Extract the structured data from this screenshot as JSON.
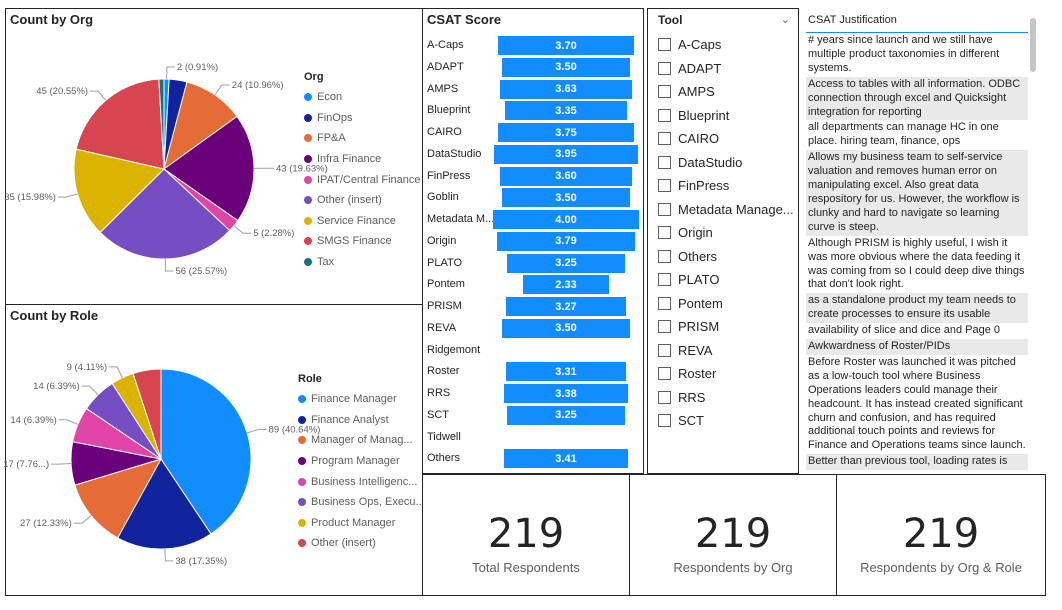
{
  "count_by_org": {
    "title": "Count by Org",
    "legend_title": "Org",
    "slices": [
      {
        "name": "Econ",
        "value": 2,
        "label": "2 (0.91%)",
        "color": "#118dff"
      },
      {
        "name": "FinOps",
        "value": 7,
        "label": "",
        "color": "#12239e"
      },
      {
        "name": "FP&A",
        "value": 24,
        "label": "24 (10.96%)",
        "color": "#e66c37"
      },
      {
        "name": "Infra Finance",
        "value": 43,
        "label": "43 (19.63%)",
        "color": "#6b007b"
      },
      {
        "name": "IPAT/Central Finance",
        "value": 5,
        "label": "5 (2.28%)",
        "color": "#e044a7"
      },
      {
        "name": "Other (insert)",
        "value": 56,
        "label": "56 (25.57%)",
        "color": "#744ec2"
      },
      {
        "name": "Service Finance",
        "value": 35,
        "label": "35 (15.98%)",
        "color": "#d9b300"
      },
      {
        "name": "SMGS Finance",
        "value": 45,
        "label": "45 (20.55%)",
        "color": "#d64550"
      },
      {
        "name": "Tax",
        "value": 2,
        "label": "",
        "color": "#197278"
      }
    ]
  },
  "count_by_role": {
    "title": "Count by Role",
    "legend_title": "Role",
    "slices": [
      {
        "name": "Finance Manager",
        "value": 89,
        "label": "89 (40.64%)",
        "color": "#118dff"
      },
      {
        "name": "Finance Analyst",
        "value": 38,
        "label": "38 (17.35%)",
        "color": "#12239e"
      },
      {
        "name": "Manager of Manag...",
        "value": 27,
        "label": "27 (12.33%)",
        "color": "#e66c37"
      },
      {
        "name": "Program Manager",
        "value": 17,
        "label": "17 (7.76...)",
        "color": "#6b007b"
      },
      {
        "name": "Business Intelligenc...",
        "value": 14,
        "label": "14 (6.39%)",
        "color": "#e044a7"
      },
      {
        "name": "Business Ops, Execu...",
        "value": 14,
        "label": "14 (6.39%)",
        "color": "#744ec2"
      },
      {
        "name": "Product Manager",
        "value": 9,
        "label": "9 (4.11%)",
        "color": "#d9b300"
      },
      {
        "name": "Other (insert)",
        "value": 11,
        "label": "",
        "color": "#d64550"
      }
    ]
  },
  "csat": {
    "title": "CSAT Score",
    "xmax": 4.0,
    "rows": [
      {
        "tool": "A-Caps",
        "value": 3.7,
        "label": "3.70"
      },
      {
        "tool": "ADAPT",
        "value": 3.5,
        "label": "3.50"
      },
      {
        "tool": "AMPS",
        "value": 3.63,
        "label": "3.63"
      },
      {
        "tool": "Blueprint",
        "value": 3.35,
        "label": "3.35"
      },
      {
        "tool": "CAIRO",
        "value": 3.75,
        "label": "3.75"
      },
      {
        "tool": "DataStudio",
        "value": 3.95,
        "label": "3.95"
      },
      {
        "tool": "FinPress",
        "value": 3.6,
        "label": "3.60"
      },
      {
        "tool": "Goblin",
        "value": 3.5,
        "label": "3.50"
      },
      {
        "tool": "Metadata M...",
        "value": 4.0,
        "label": "4.00"
      },
      {
        "tool": "Origin",
        "value": 3.79,
        "label": "3.79"
      },
      {
        "tool": "PLATO",
        "value": 3.25,
        "label": "3.25"
      },
      {
        "tool": "Pontem",
        "value": 2.33,
        "label": "2.33"
      },
      {
        "tool": "PRISM",
        "value": 3.27,
        "label": "3.27"
      },
      {
        "tool": "REVA",
        "value": 3.5,
        "label": "3.50"
      },
      {
        "tool": "Ridgemont",
        "value": null,
        "label": ""
      },
      {
        "tool": "Roster",
        "value": 3.31,
        "label": "3.31"
      },
      {
        "tool": "RRS",
        "value": 3.38,
        "label": "3.38"
      },
      {
        "tool": "SCT",
        "value": 3.25,
        "label": "3.25"
      },
      {
        "tool": "Tidwell",
        "value": null,
        "label": ""
      },
      {
        "tool": "Others",
        "value": 3.41,
        "label": "3.41"
      }
    ]
  },
  "tool_slicer": {
    "title": "Tool",
    "items": [
      "A-Caps",
      "ADAPT",
      "AMPS",
      "Blueprint",
      "CAIRO",
      "DataStudio",
      "FinPress",
      "Metadata Manage...",
      "Origin",
      "Others",
      "PLATO",
      "Pontem",
      "PRISM",
      "REVA",
      "Roster",
      "RRS",
      "SCT"
    ]
  },
  "justification": {
    "header": "CSAT Justification",
    "rows": [
      "# years since launch and we still have multiple product taxonomies in different systems.",
      "Access to tables with all information. ODBC connection through excel and Quicksight integration for reporting",
      "all departments can manage HC in one place. hiring team, finance, ops",
      "Allows my business team to self-service valuation and removes human error on manipulating excel. Also great data respository for us. However, the workflow is clunky and hard to navigate so learning curve is steep.",
      "Although PRISM is highly useful, I wish it was more obvious where the data feeding it was coming from so I could deep dive things that don't look right.",
      "as a standalone product my team needs to create processes to ensure its usable",
      "availability of slice and dice and Page 0",
      "Awkwardness of Roster/PIDs",
      "Before Roster was launched it was pitched as a low-touch tool where Business Operations leaders could manage their headcount. It has instead created significant churn and confusion, and has required additional touch points and reviews for Finance and Operations teams since launch.",
      "Better than previous tool, loading rates is"
    ]
  },
  "cards": [
    {
      "value": "219",
      "label": "Total Respondents"
    },
    {
      "value": "219",
      "label": "Respondents by Org"
    },
    {
      "value": "219",
      "label": "Respondents by Org & Role"
    }
  ]
}
